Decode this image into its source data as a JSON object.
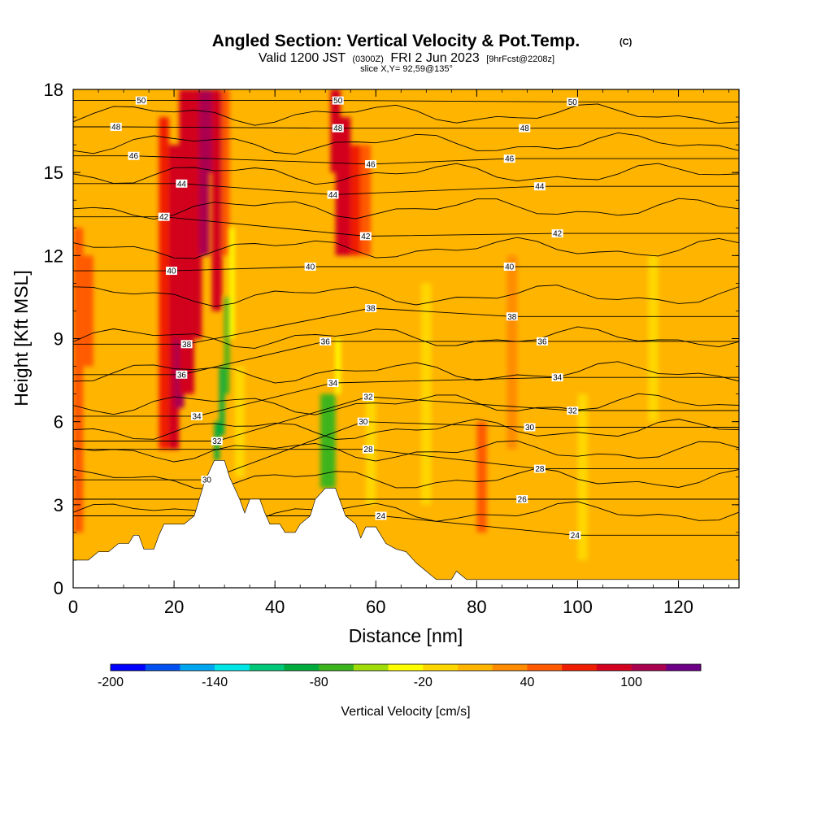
{
  "chart_data": {
    "type": "heatmap",
    "title": "Angled Section: Vertical Velocity & Pot.Temp.",
    "title_mark": "(C)",
    "subtitle_parts": [
      "Valid 1200 JST",
      "(0300Z)",
      "FRI 2 Jun 2023",
      "[9hrFcst@2208z]"
    ],
    "slice_label": "slice X,Y= 92,59@135°",
    "xlabel": "Distance [nm]",
    "ylabel": "Height [Kft MSL]",
    "xlim": [
      0,
      132
    ],
    "ylim": [
      0,
      18
    ],
    "x_ticks": [
      0,
      20,
      40,
      60,
      80,
      100,
      120
    ],
    "y_ticks": [
      0,
      3,
      6,
      9,
      12,
      15,
      18
    ],
    "x_tick_labels": [
      "0",
      "20",
      "40",
      "60",
      "80",
      "100",
      "120"
    ],
    "y_tick_labels": [
      "0",
      "3",
      "6",
      "9",
      "12",
      "15",
      "18"
    ],
    "colorbar": {
      "title": "Vertical Velocity [cm/s]",
      "min": -200,
      "max": 130,
      "step": 20,
      "tick_values": [
        -200,
        -140,
        -80,
        -20,
        40,
        100
      ],
      "tick_labels": [
        "-200",
        "-140",
        "-80",
        "-20",
        "40",
        "100"
      ],
      "colors": [
        "#0000ff",
        "#0050f0",
        "#00a5f0",
        "#00e6e6",
        "#00c878",
        "#00aa3c",
        "#3cb41e",
        "#a0dc0a",
        "#ffff00",
        "#ffd700",
        "#ffb400",
        "#ff8c00",
        "#ff5a00",
        "#f01e00",
        "#d2001e",
        "#aa0050",
        "#6e0087"
      ]
    },
    "contour_labels": [
      {
        "text": "50",
        "x": 13.5,
        "y": 17.6
      },
      {
        "text": "48",
        "x": 8.5,
        "y": 16.65
      },
      {
        "text": "46",
        "x": 12,
        "y": 15.6
      },
      {
        "text": "44",
        "x": 21.5,
        "y": 14.6
      },
      {
        "text": "42",
        "x": 18,
        "y": 13.4
      },
      {
        "text": "40",
        "x": 19.5,
        "y": 11.45
      },
      {
        "text": "38",
        "x": 22.5,
        "y": 8.8
      },
      {
        "text": "36",
        "x": 21.5,
        "y": 7.7
      },
      {
        "text": "34",
        "x": 24.5,
        "y": 6.2
      },
      {
        "text": "32",
        "x": 28.5,
        "y": 5.3
      },
      {
        "text": "30",
        "x": 26.5,
        "y": 3.9
      },
      {
        "text": "50",
        "x": 52.5,
        "y": 17.6
      },
      {
        "text": "48",
        "x": 52.5,
        "y": 16.6
      },
      {
        "text": "46",
        "x": 59,
        "y": 15.3
      },
      {
        "text": "44",
        "x": 51.5,
        "y": 14.2
      },
      {
        "text": "42",
        "x": 58,
        "y": 12.7
      },
      {
        "text": "40",
        "x": 47,
        "y": 11.6
      },
      {
        "text": "38",
        "x": 59,
        "y": 10.1
      },
      {
        "text": "36",
        "x": 50,
        "y": 8.9
      },
      {
        "text": "34",
        "x": 51.5,
        "y": 7.4
      },
      {
        "text": "32",
        "x": 58.5,
        "y": 6.9
      },
      {
        "text": "30",
        "x": 57.5,
        "y": 6.0
      },
      {
        "text": "28",
        "x": 58.5,
        "y": 5.0
      },
      {
        "text": "24",
        "x": 61,
        "y": 2.6
      },
      {
        "text": "50",
        "x": 99,
        "y": 17.55
      },
      {
        "text": "48",
        "x": 89.5,
        "y": 16.6
      },
      {
        "text": "46",
        "x": 86.5,
        "y": 15.5
      },
      {
        "text": "44",
        "x": 92.5,
        "y": 14.5
      },
      {
        "text": "42",
        "x": 96,
        "y": 12.8
      },
      {
        "text": "40",
        "x": 86.5,
        "y": 11.6
      },
      {
        "text": "38",
        "x": 87,
        "y": 9.8
      },
      {
        "text": "36",
        "x": 93,
        "y": 8.9
      },
      {
        "text": "34",
        "x": 96,
        "y": 7.6
      },
      {
        "text": "32",
        "x": 99,
        "y": 6.4
      },
      {
        "text": "30",
        "x": 90.5,
        "y": 5.8
      },
      {
        "text": "28",
        "x": 92.5,
        "y": 4.3
      },
      {
        "text": "26",
        "x": 89,
        "y": 3.2
      },
      {
        "text": "24",
        "x": 99.5,
        "y": 1.9
      }
    ],
    "terrain": [
      [
        0,
        1.0
      ],
      [
        3,
        1.0
      ],
      [
        5,
        1.3
      ],
      [
        7,
        1.3
      ],
      [
        9,
        1.6
      ],
      [
        11,
        1.6
      ],
      [
        12,
        1.9
      ],
      [
        13,
        1.9
      ],
      [
        14,
        1.4
      ],
      [
        16,
        1.4
      ],
      [
        17,
        1.9
      ],
      [
        18,
        2.3
      ],
      [
        22,
        2.3
      ],
      [
        24,
        2.6
      ],
      [
        25,
        3.2
      ],
      [
        26,
        3.8
      ],
      [
        28,
        4.6
      ],
      [
        30,
        4.6
      ],
      [
        31,
        4.0
      ],
      [
        33,
        3.2
      ],
      [
        34,
        2.7
      ],
      [
        35,
        3.2
      ],
      [
        37,
        3.2
      ],
      [
        38,
        2.7
      ],
      [
        39,
        2.3
      ],
      [
        41,
        2.3
      ],
      [
        42,
        2.0
      ],
      [
        44,
        2.0
      ],
      [
        45,
        2.3
      ],
      [
        47,
        2.6
      ],
      [
        48,
        3.2
      ],
      [
        50,
        3.6
      ],
      [
        52,
        3.6
      ],
      [
        53,
        3.1
      ],
      [
        54,
        2.6
      ],
      [
        56,
        2.3
      ],
      [
        57,
        1.8
      ],
      [
        58,
        2.2
      ],
      [
        60,
        2.2
      ],
      [
        62,
        1.6
      ],
      [
        64,
        1.4
      ],
      [
        66,
        1.3
      ],
      [
        68,
        0.9
      ],
      [
        70,
        0.6
      ],
      [
        72,
        0.3
      ],
      [
        75,
        0.3
      ],
      [
        76,
        0.6
      ],
      [
        78,
        0.3
      ],
      [
        132,
        0.3
      ]
    ],
    "velocity_cells": [
      {
        "x": [
          0,
          2
        ],
        "y": [
          2,
          13
        ],
        "v": 45
      },
      {
        "x": [
          2,
          4
        ],
        "y": [
          8,
          12
        ],
        "v": 40
      },
      {
        "x": [
          17,
          19
        ],
        "y": [
          5,
          17
        ],
        "v": 70
      },
      {
        "x": [
          19,
          21
        ],
        "y": [
          5,
          16
        ],
        "v": 90
      },
      {
        "x": [
          20,
          22
        ],
        "y": [
          6.5,
          9
        ],
        "v": 110
      },
      {
        "x": [
          21,
          24
        ],
        "y": [
          7,
          18
        ],
        "v": 90
      },
      {
        "x": [
          24,
          25.5
        ],
        "y": [
          9,
          18
        ],
        "v": 95
      },
      {
        "x": [
          25,
          27
        ],
        "y": [
          12,
          18
        ],
        "v": 100
      },
      {
        "x": [
          26,
          27.5
        ],
        "y": [
          15,
          18
        ],
        "v": 115
      },
      {
        "x": [
          27.5,
          29.5
        ],
        "y": [
          10,
          18
        ],
        "v": 90
      },
      {
        "x": [
          29.5,
          31
        ],
        "y": [
          12,
          18
        ],
        "v": 50
      },
      {
        "x": [
          31,
          32
        ],
        "y": [
          9,
          13
        ],
        "v": -40
      },
      {
        "x": [
          30,
          31
        ],
        "y": [
          7,
          10.5
        ],
        "v": -70
      },
      {
        "x": [
          29,
          30
        ],
        "y": [
          5.5,
          8
        ],
        "v": -90
      },
      {
        "x": [
          28,
          29
        ],
        "y": [
          4.6,
          6
        ],
        "v": -100
      },
      {
        "x": [
          32,
          34
        ],
        "y": [
          4,
          8
        ],
        "v": -20
      },
      {
        "x": [
          51,
          53
        ],
        "y": [
          15,
          18
        ],
        "v": 85
      },
      {
        "x": [
          52,
          55
        ],
        "y": [
          12,
          17
        ],
        "v": 95
      },
      {
        "x": [
          55,
          57
        ],
        "y": [
          12,
          16
        ],
        "v": 60
      },
      {
        "x": [
          57,
          59
        ],
        "y": [
          12,
          16
        ],
        "v": 40
      },
      {
        "x": [
          52,
          53
        ],
        "y": [
          7,
          9
        ],
        "v": -40
      },
      {
        "x": [
          49,
          52
        ],
        "y": [
          3.6,
          7
        ],
        "v": -80
      },
      {
        "x": [
          58,
          60
        ],
        "y": [
          3,
          7
        ],
        "v": -20
      },
      {
        "x": [
          69,
          71
        ],
        "y": [
          3,
          11
        ],
        "v": -20
      },
      {
        "x": [
          80,
          82
        ],
        "y": [
          2,
          6
        ],
        "v": 40
      },
      {
        "x": [
          86,
          88
        ],
        "y": [
          5,
          12
        ],
        "v": 30
      },
      {
        "x": [
          100,
          102
        ],
        "y": [
          1,
          7
        ],
        "v": -20
      },
      {
        "x": [
          114,
          116
        ],
        "y": [
          6,
          12
        ],
        "v": -20
      }
    ],
    "grid": false,
    "legend_position": "bottom"
  }
}
